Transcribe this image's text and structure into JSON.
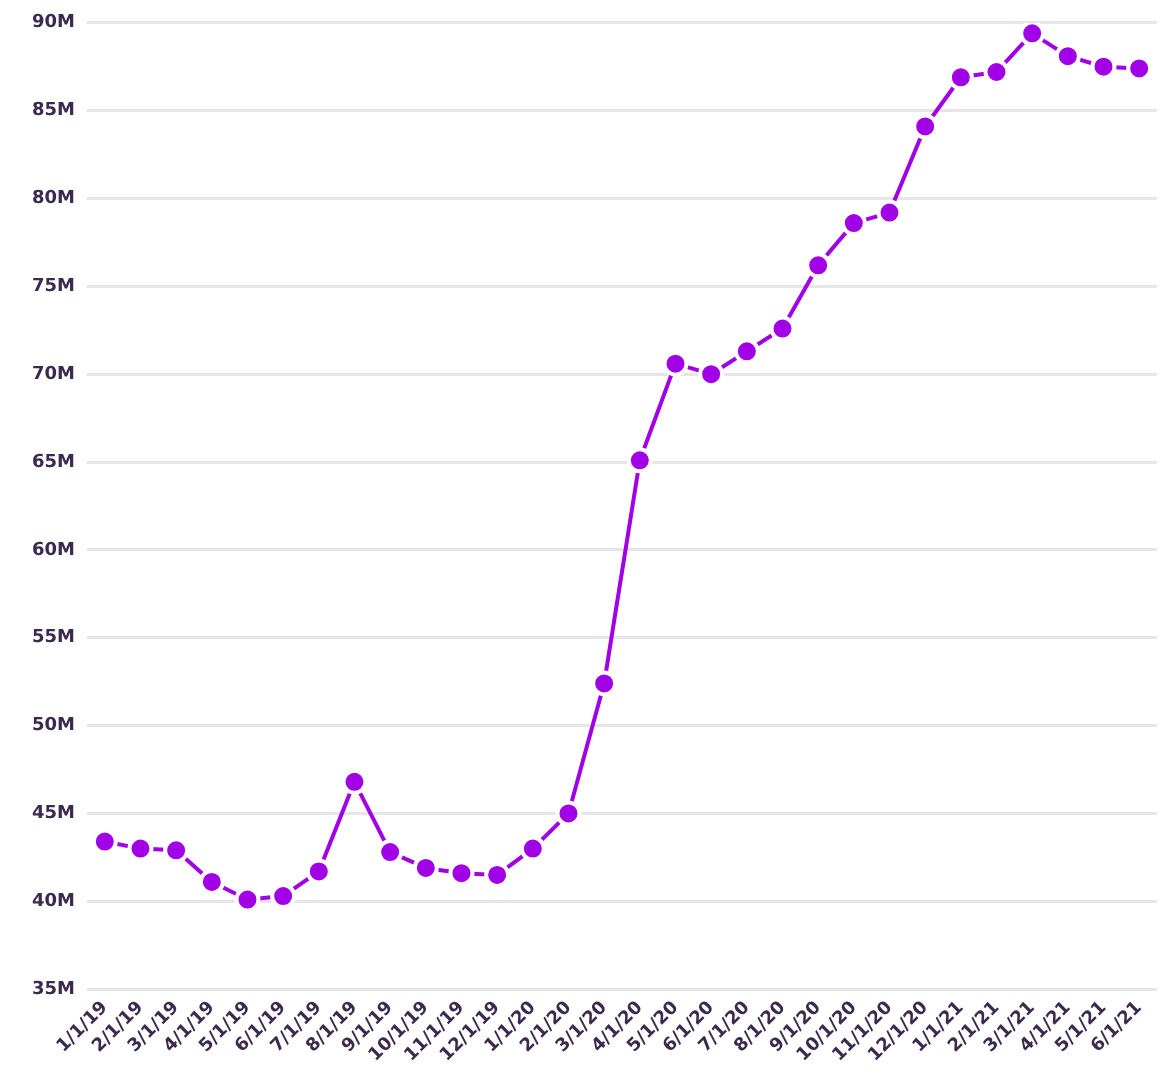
{
  "chart_data": {
    "type": "line",
    "categories": [
      "1/1/19",
      "2/1/19",
      "3/1/19",
      "4/1/19",
      "5/1/19",
      "6/1/19",
      "7/1/19",
      "8/1/19",
      "9/1/19",
      "10/1/19",
      "11/1/19",
      "12/1/19",
      "1/1/20",
      "2/1/20",
      "3/1/20",
      "4/1/20",
      "5/1/20",
      "6/1/20",
      "7/1/20",
      "8/1/20",
      "9/1/20",
      "10/1/20",
      "11/1/20",
      "12/1/20",
      "1/1/21",
      "2/1/21",
      "3/1/21",
      "4/1/21",
      "5/1/21",
      "6/1/21"
    ],
    "series": [
      {
        "color": "#a100e6",
        "values": [
          43.4,
          43.0,
          42.9,
          41.1,
          40.1,
          40.3,
          41.7,
          46.8,
          42.8,
          41.9,
          41.6,
          41.5,
          43.0,
          45.0,
          52.4,
          65.1,
          70.6,
          70.0,
          71.3,
          72.6,
          76.2,
          78.6,
          79.2,
          84.1,
          86.9,
          87.2,
          89.4,
          88.1,
          87.5,
          87.4
        ]
      }
    ],
    "ylim": [
      35,
      90
    ],
    "yticks": [
      {
        "value": 35,
        "label": "35M"
      },
      {
        "value": 40,
        "label": "40M"
      },
      {
        "value": 45,
        "label": "45M"
      },
      {
        "value": 50,
        "label": "50M"
      },
      {
        "value": 55,
        "label": "55M"
      },
      {
        "value": 60,
        "label": "60M"
      },
      {
        "value": 65,
        "label": "65M"
      },
      {
        "value": 70,
        "label": "70M"
      },
      {
        "value": 75,
        "label": "75M"
      },
      {
        "value": 80,
        "label": "80M"
      },
      {
        "value": 85,
        "label": "85M"
      },
      {
        "value": 90,
        "label": "90M"
      }
    ],
    "grid": "y",
    "legend": false,
    "marker": "circle",
    "line_style": "solid"
  }
}
